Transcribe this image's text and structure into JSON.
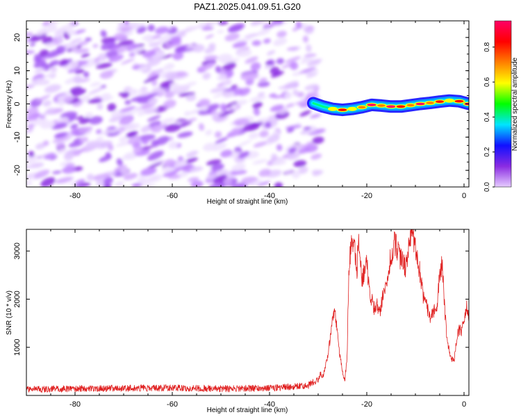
{
  "figure_title": "PAZ1.2025.041.09.51.G20",
  "chart_data": [
    {
      "type": "heatmap",
      "title": "PAZ1.2025.041.09.51.G20",
      "xlabel": "Height of straight line (km)",
      "ylabel": "Frequency (Hz)",
      "xlim": [
        -90,
        1
      ],
      "ylim": [
        -25,
        25
      ],
      "xticks": [
        -80,
        -60,
        -40,
        -20,
        0
      ],
      "yticks": [
        -20,
        -10,
        0,
        10,
        20
      ],
      "noise_region_x": [
        -90,
        -30
      ],
      "signal_region_x": [
        -31,
        1
      ],
      "signal_track": {
        "x": [
          -31,
          -29,
          -27,
          -25,
          -23,
          -21,
          -19,
          -17,
          -15,
          -13,
          -11,
          -9,
          -7,
          -5,
          -3,
          -1,
          1
        ],
        "frequency": [
          0.2,
          -0.8,
          -1.5,
          -1.8,
          -1.5,
          -1.0,
          -0.3,
          -0.5,
          -0.8,
          -0.8,
          -0.4,
          0.0,
          0.3,
          0.7,
          1.0,
          0.8,
          0.0
        ],
        "peak_amplitude": [
          0.45,
          0.5,
          0.6,
          0.85,
          0.55,
          0.7,
          0.9,
          0.75,
          0.95,
          0.85,
          0.7,
          0.9,
          0.75,
          0.8,
          0.6,
          0.85,
          0.9
        ]
      },
      "colorbar": {
        "label": "Normalized spectral amplitude",
        "range": [
          0.0,
          0.95
        ],
        "ticks": [
          0.0,
          0.2,
          0.4,
          0.6,
          0.8
        ],
        "tick_labels": [
          "0.0",
          "0.2",
          "0.4",
          "0.6",
          "0.8"
        ],
        "colors": [
          "#e6ccff",
          "#8a2be2",
          "#1010ff",
          "#00e5ff",
          "#00ff00",
          "#ffff00",
          "#ff7f00",
          "#ff0000",
          "#ff0066"
        ]
      }
    },
    {
      "type": "line",
      "xlabel": "Height of straight line (km)",
      "ylabel": "SNR (10 * v/v)",
      "xlim": [
        -90,
        1
      ],
      "ylim": [
        0,
        3450
      ],
      "xticks": [
        -80,
        -60,
        -40,
        -20,
        0
      ],
      "yticks": [
        1000,
        2000,
        3000
      ],
      "line_color": "#e02020",
      "series": [
        {
          "values_x": [
            -90,
            -80,
            -70,
            -60,
            -50,
            -40,
            -32,
            -30,
            -29.5,
            -29,
            -28.5,
            -28,
            -27.5,
            -27,
            -26.5,
            -26,
            -25.5,
            -25,
            -24.5,
            -24,
            -23.8,
            -23.5,
            -23,
            -22.5,
            -22,
            -21.8,
            -21.5,
            -21,
            -20.5,
            -20,
            -19.5,
            -19,
            -18.5,
            -18,
            -17.5,
            -17,
            -16.5,
            -16,
            -15.5,
            -15,
            -14.5,
            -14,
            -13.5,
            -13,
            -12.5,
            -12,
            -11.5,
            -11,
            -10.8,
            -10.5,
            -10,
            -9.5,
            -9,
            -8.5,
            -8,
            -7.5,
            -7,
            -6.5,
            -6,
            -5.5,
            -5,
            -4.5,
            -4,
            -3.5,
            -3,
            -2.5,
            -2,
            -1.5,
            -1,
            -0.5,
            0,
            0.5,
            1
          ],
          "values_y": [
            120,
            130,
            140,
            150,
            130,
            140,
            200,
            330,
            450,
            380,
            600,
            850,
            1200,
            1600,
            1750,
            1300,
            800,
            500,
            300,
            900,
            2200,
            2900,
            3300,
            3000,
            2600,
            3200,
            3000,
            2400,
            2600,
            2800,
            2100,
            2000,
            1800,
            1900,
            1700,
            1900,
            2100,
            2300,
            2600,
            2900,
            3100,
            3200,
            2900,
            2800,
            2800,
            2600,
            3000,
            3400,
            3350,
            3300,
            3100,
            2800,
            2500,
            2100,
            1900,
            1800,
            1600,
            1700,
            1750,
            1900,
            2500,
            2800,
            1800,
            1200,
            900,
            750,
            750,
            1200,
            1400,
            1300,
            1600,
            1850,
            1600
          ]
        }
      ]
    }
  ]
}
